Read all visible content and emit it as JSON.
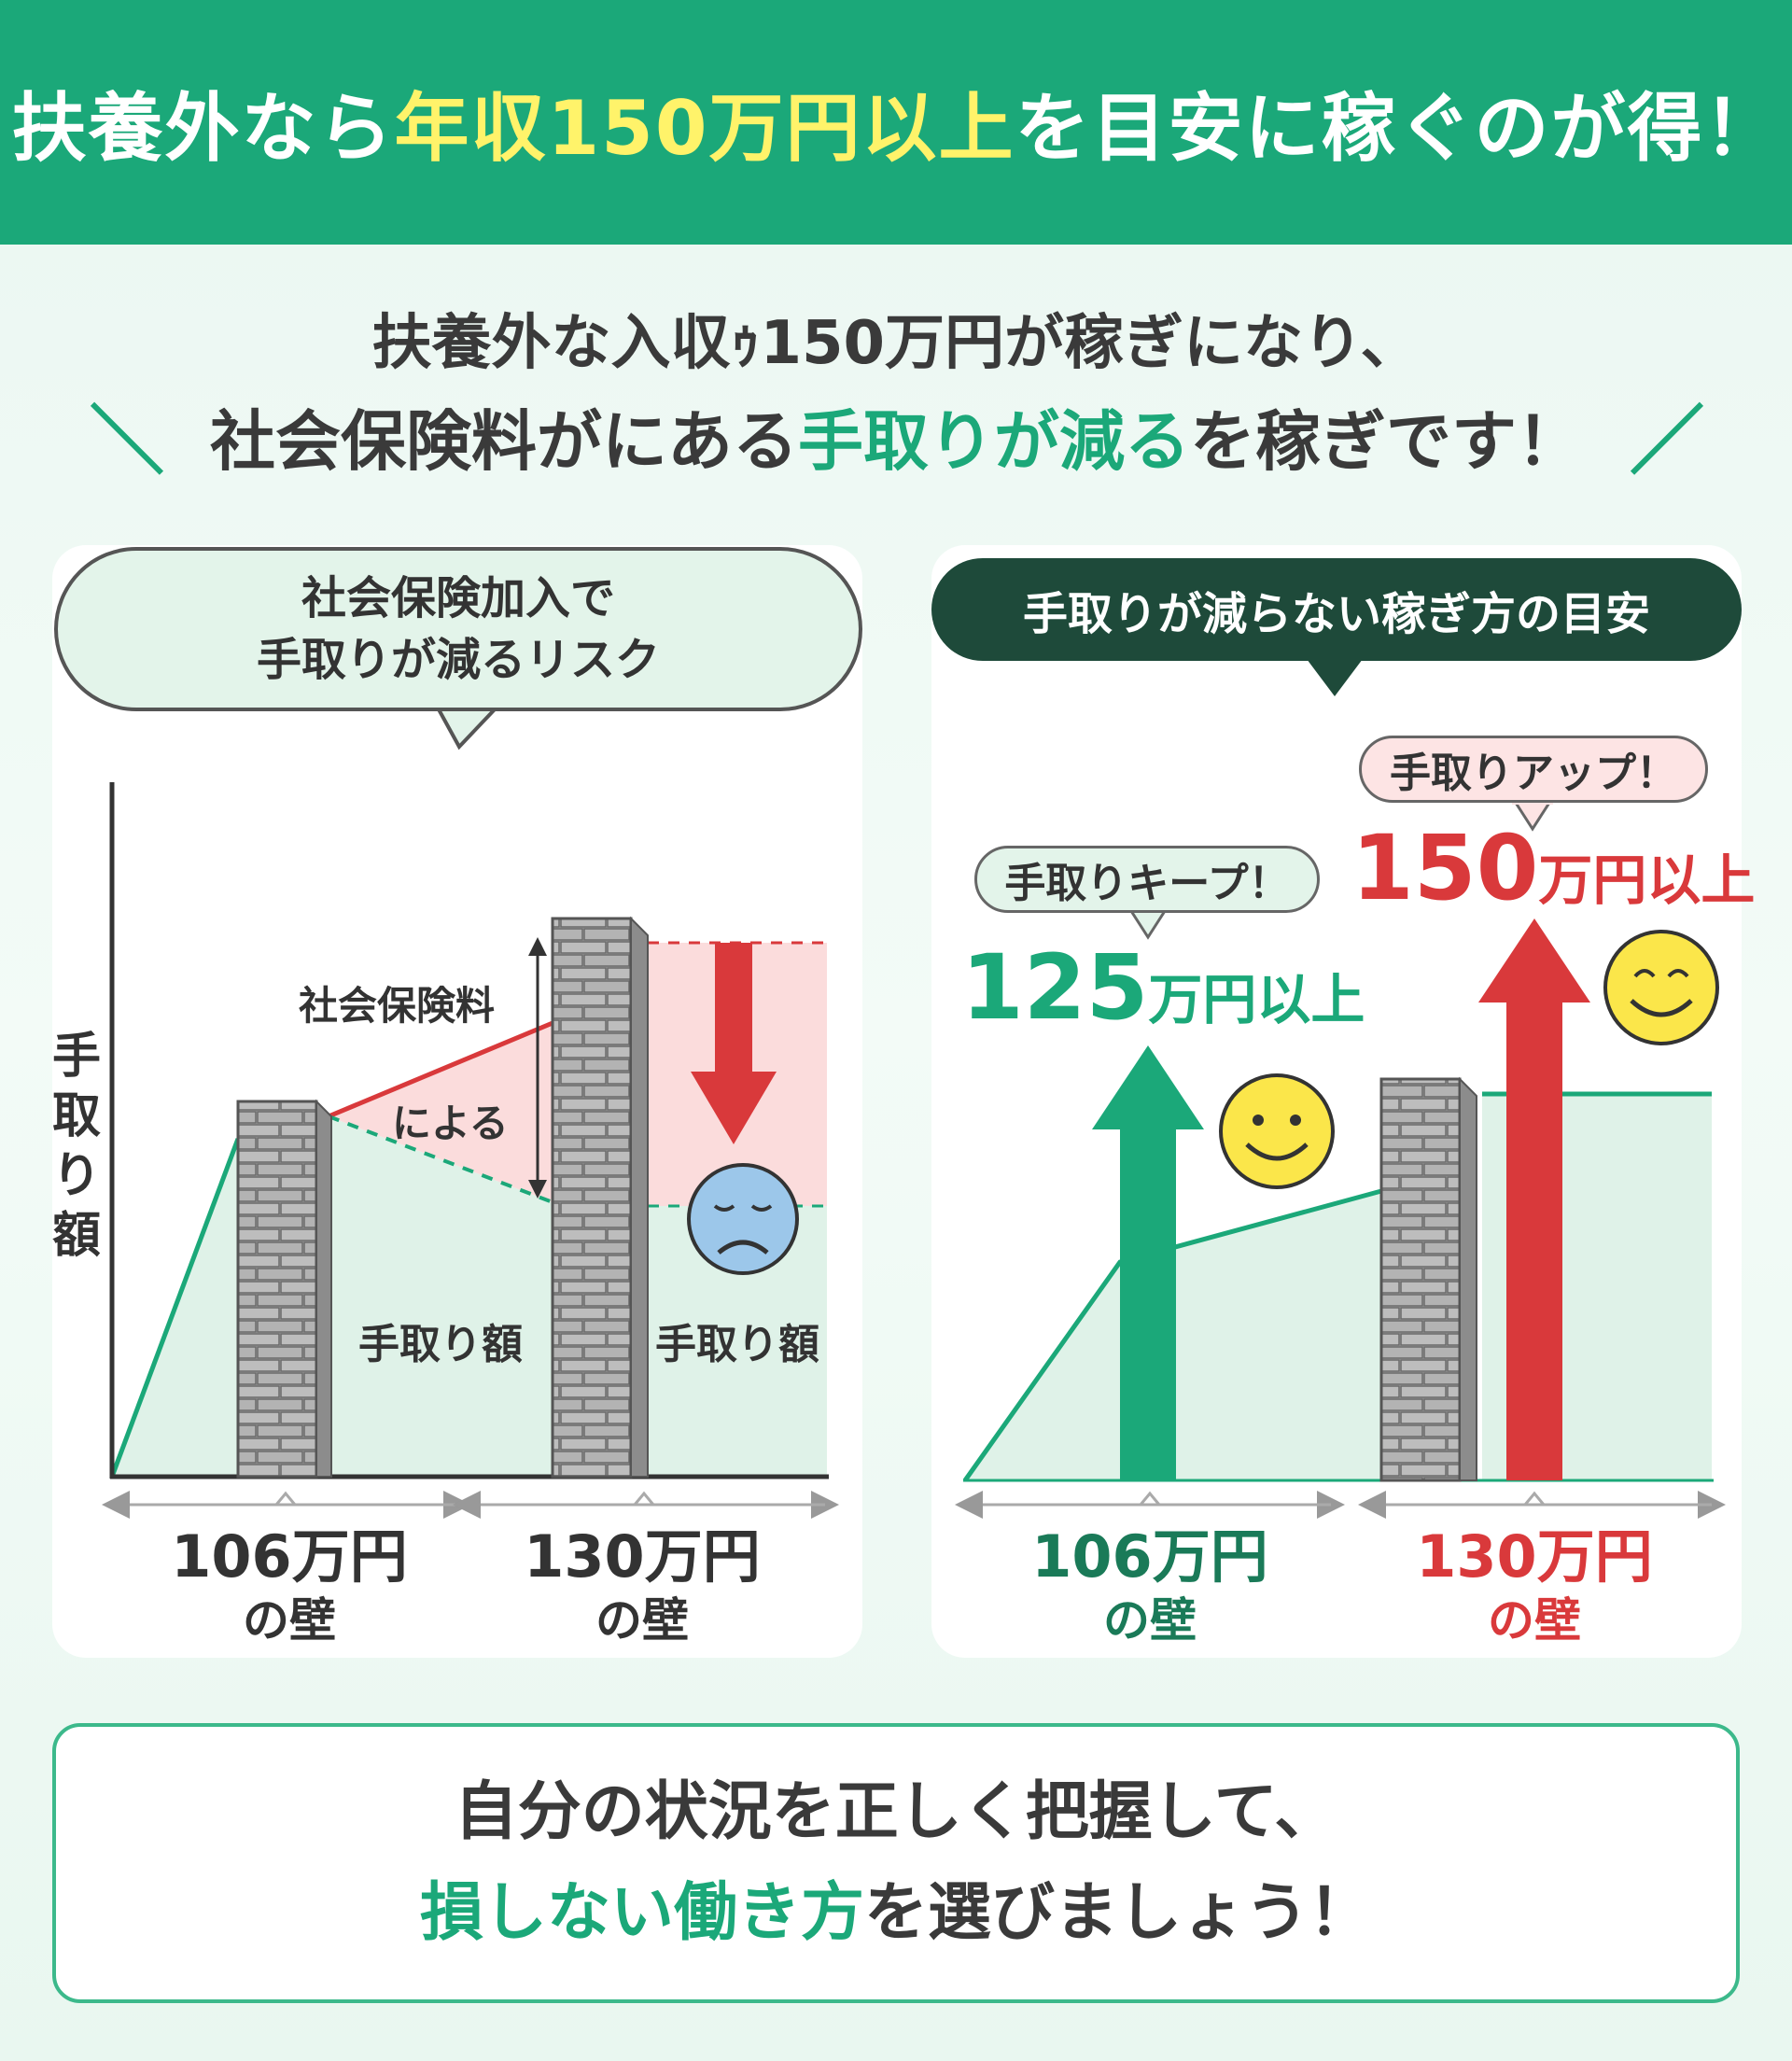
{
  "header": {
    "pre": "扶養外なら",
    "highlight": "年収150万円以上",
    "post": "を目安に稼ぐのが得！"
  },
  "subtitle": {
    "line1": "扶養外な入収ｩ150万円が稼ぎになり、",
    "line2_pre": "社会保険料がにある",
    "line2_highlight": "手取りが減る",
    "line2_post": "を稼ぎです！"
  },
  "left_panel": {
    "bubble_line1": "社会保険加入で",
    "bubble_line2": "手取りが減るリスク",
    "y_axis_label": "手取り額",
    "annotation_1": "社会保険料",
    "annotation_2": "による",
    "area_label_1": "手取り額",
    "area_label_2": "手取り額",
    "wall_1_amount": "106万円",
    "wall_1_suffix": "の壁",
    "wall_2_amount": "130万円",
    "wall_2_suffix": "の壁"
  },
  "right_panel": {
    "bubble": "手取りが減らない稼ぎ方の目安",
    "keep_pill": "手取りキープ！",
    "keep_amount": "125",
    "keep_unit": "万円以上",
    "up_pill": "手取りアップ！",
    "up_amount": "150",
    "up_unit": "万円以上",
    "wall_1_amount": "106万円",
    "wall_1_suffix": "の壁",
    "wall_2_amount": "130万円",
    "wall_2_suffix": "の壁"
  },
  "bottom": {
    "line1": "自分の状況を正しく把握して、",
    "line2_highlight": "損しない働き方",
    "line2_post": "を選びましょう！"
  },
  "colors": {
    "green": "#1ba879",
    "dark_green": "#1e4a3a",
    "red": "#d9393b",
    "yellow": "#fff36a",
    "area_green": "#dff2e8",
    "area_pink": "#fbdcdc"
  }
}
